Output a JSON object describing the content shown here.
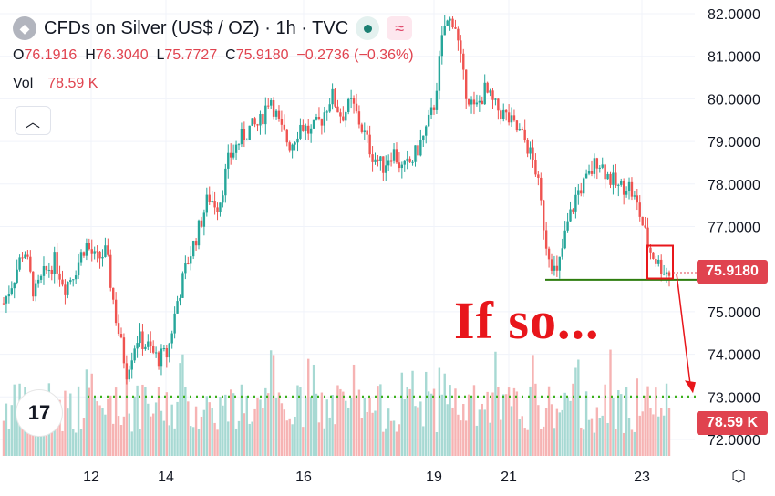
{
  "header": {
    "title": "CFDs on Silver (US$ / OZ) · 1h · TVC",
    "wave_icon": "≈"
  },
  "ohlc": {
    "o_label": "O",
    "o_value": "76.1916",
    "h_label": "H",
    "h_value": "76.3040",
    "l_label": "L",
    "l_value": "75.7727",
    "c_label": "C",
    "c_value": "75.9180",
    "change": "−0.2736 (−0.36%)"
  },
  "volume": {
    "label": "Vol",
    "value": "78.59 K"
  },
  "price_tag": "75.9180",
  "volume_tag": "78.59 K",
  "annotation": "If so...",
  "colors": {
    "up": "#26a69a",
    "down": "#ef5350",
    "annotation": "#e8161b",
    "support": "#2e7d0f",
    "target": "#3cb01a"
  },
  "chart_data": {
    "type": "candlestick",
    "timeframe": "1h",
    "x_tick_labels": [
      "12",
      "14",
      "16",
      "19",
      "21",
      "23"
    ],
    "y_tick_labels": [
      "82.0000",
      "81.0000",
      "80.0000",
      "79.0000",
      "78.0000",
      "77.0000",
      "75.0000",
      "74.0000",
      "73.0000",
      "72.0000"
    ],
    "ylim": [
      71.6,
      82.2
    ],
    "last_close": 75.918,
    "support_level": 75.75,
    "target_level": 73.0,
    "close_path": [
      75.2,
      75.8,
      76.5,
      75.4,
      75.9,
      76.2,
      75.6,
      76.0,
      76.6,
      76.2,
      76.4,
      74.8,
      73.6,
      74.4,
      74.2,
      73.9,
      74.0,
      75.3,
      76.2,
      76.9,
      77.7,
      77.5,
      78.6,
      79.0,
      79.3,
      79.4,
      80.1,
      79.3,
      78.9,
      79.4,
      79.2,
      79.5,
      80.1,
      79.6,
      79.9,
      79.3,
      78.7,
      78.4,
      78.8,
      78.3,
      78.6,
      79.1,
      79.8,
      81.7,
      81.9,
      80.3,
      79.7,
      80.2,
      79.8,
      79.6,
      79.3,
      79.0,
      78.3,
      76.6,
      75.8,
      77.0,
      77.8,
      78.1,
      78.6,
      78.2,
      77.9,
      78.0,
      77.4,
      76.5,
      76.1,
      75.9
    ]
  }
}
